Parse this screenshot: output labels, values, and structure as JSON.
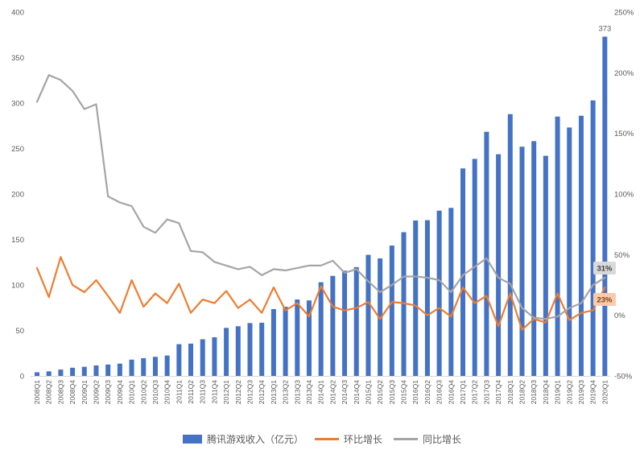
{
  "chart_data": {
    "type": "bar",
    "subtype": "bar-line-combo",
    "title": "",
    "categories": [
      "2008Q1",
      "2008Q2",
      "2008Q3",
      "2008Q4",
      "2009Q1",
      "2009Q2",
      "2009Q3",
      "2009Q4",
      "2010Q1",
      "2010Q2",
      "2010Q3",
      "2010Q4",
      "2011Q1",
      "2011Q2",
      "2011Q3",
      "2011Q4",
      "2012Q1",
      "2012Q2",
      "2012Q3",
      "2012Q4",
      "2013Q1",
      "2013Q2",
      "2013Q3",
      "2013Q4",
      "2014Q1",
      "2014Q2",
      "2014Q3",
      "2014Q4",
      "2015Q1",
      "2015Q2",
      "2015Q3",
      "2015Q4",
      "2016Q1",
      "2016Q2",
      "2016Q3",
      "2016Q4",
      "2017Q1",
      "2017Q2",
      "2017Q3",
      "2017Q4",
      "2018Q1",
      "2018Q2",
      "2018Q3",
      "2018Q4",
      "2019Q1",
      "2019Q2",
      "2019Q3",
      "2019Q4",
      "2020Q1"
    ],
    "series": [
      {
        "name": "腾讯游戏收入（亿元）",
        "type": "bar",
        "axis": "left",
        "color": "#4472C4",
        "values": [
          4,
          5,
          7,
          9,
          10,
          11.5,
          12.5,
          13.5,
          17.9,
          19.5,
          21,
          22.4,
          34.9,
          35.5,
          40.3,
          42.5,
          52.8,
          54.6,
          58.1,
          58.5,
          73.5,
          76,
          84,
          83,
          103,
          110,
          115.7,
          119.6,
          133.1,
          129.2,
          143.3,
          158,
          170.9,
          171.2,
          181.7,
          184.7,
          228.1,
          238.6,
          268.4,
          243.7,
          287.8,
          252,
          258.1,
          242,
          285.1,
          273.1,
          286,
          302.9,
          373
        ]
      },
      {
        "name": "环比增长",
        "type": "line",
        "axis": "right",
        "color": "#ED7D31",
        "values": [
          39,
          15,
          48,
          25,
          19,
          29,
          16,
          2,
          29,
          7,
          18,
          10,
          26,
          2,
          13,
          10,
          20,
          6,
          13,
          2,
          23,
          4,
          10,
          -1,
          24,
          7,
          4,
          6,
          11,
          -3,
          11,
          10,
          8,
          0,
          6,
          -1,
          23,
          10,
          16,
          -9,
          18,
          -12,
          -3,
          -6,
          18,
          -4,
          2,
          4,
          23
        ]
      },
      {
        "name": "同比增长",
        "type": "line",
        "axis": "right",
        "color": "#A5A5A5",
        "values": [
          176,
          198,
          194,
          185,
          170,
          174,
          98,
          93,
          90,
          73,
          68,
          79,
          76,
          53,
          52,
          44,
          41,
          38,
          40,
          33,
          38,
          37,
          39,
          41,
          41,
          45,
          35,
          38,
          28,
          19,
          25,
          32,
          32,
          31,
          29,
          19,
          33,
          40,
          47,
          31,
          26,
          6,
          -2,
          -3,
          -1,
          6,
          10,
          25,
          31
        ]
      }
    ],
    "left_axis": {
      "min": 0,
      "max": 400,
      "step": 50,
      "ticks": [
        "0",
        "50",
        "100",
        "150",
        "200",
        "250",
        "300",
        "350",
        "400"
      ]
    },
    "right_axis": {
      "min": -50,
      "max": 250,
      "step": 50,
      "ticks": [
        "-50%",
        "0%",
        "50%",
        "100%",
        "150%",
        "200%",
        "250%"
      ]
    },
    "grid": false,
    "legend_position": "bottom",
    "annotations": {
      "bar_value_label": {
        "text": "373",
        "color": "#595959"
      },
      "callouts": [
        {
          "text": "31%",
          "series": "同比增长",
          "bg": "#D9D9D9",
          "color": "#404040",
          "x": 751,
          "y": 333
        },
        {
          "text": "23%",
          "series": "环比增长",
          "bg": "#F8CBAD",
          "color": "#843C0C",
          "x": 751,
          "y": 372
        }
      ]
    },
    "colors": {
      "axis_text": "#595959",
      "axis_line": "#D9D9D9",
      "background": "#FFFFFF"
    }
  },
  "legend": {
    "items": [
      {
        "label": "腾讯游戏收入（亿元）",
        "marker": "bar-swatch"
      },
      {
        "label": "环比增长",
        "marker": "orange-line-swatch"
      },
      {
        "label": "同比增长",
        "marker": "gray-line-swatch"
      }
    ]
  }
}
